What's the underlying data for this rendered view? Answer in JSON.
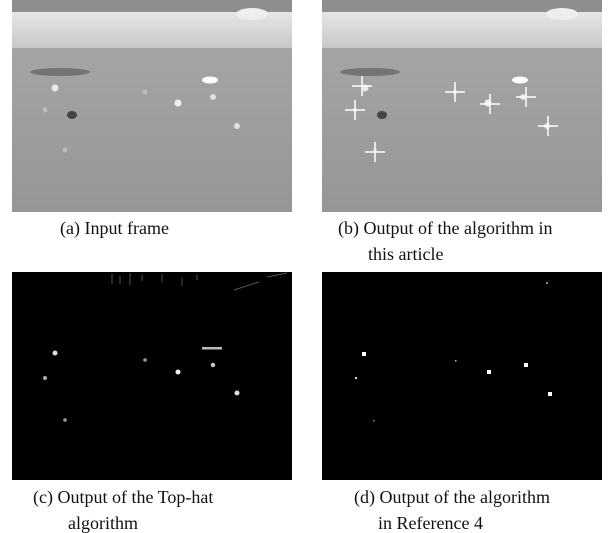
{
  "figure": {
    "panels": [
      {
        "caption": [
          "(a) Input frame"
        ]
      },
      {
        "caption": [
          "(b) Output of the algorithm in",
          "this article"
        ]
      },
      {
        "caption": [
          "(c) Output of the Top-hat",
          "algorithm"
        ]
      },
      {
        "caption": [
          "(d) Output of the algorithm",
          "in Reference 4"
        ]
      }
    ]
  }
}
